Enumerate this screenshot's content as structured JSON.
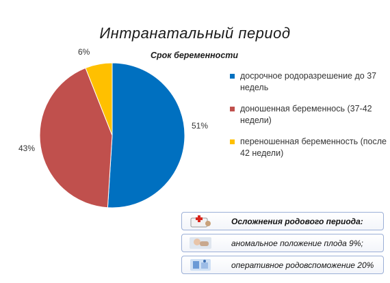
{
  "title": "Интранатальный период",
  "chart_data": {
    "type": "pie",
    "title": "Срок беременности",
    "slices": [
      {
        "label": "досрочное родоразрешение до 37 недель",
        "value": 51,
        "display": "51%",
        "color": "#0070C0"
      },
      {
        "label": "доношенная беременнось (37-42 недели)",
        "value": 43,
        "display": "43%",
        "color": "#C0504D"
      },
      {
        "label": "переношенная беременность (после 42 недели)",
        "value": 6,
        "display": "6%",
        "color": "#FFC000"
      }
    ],
    "legend_position": "right"
  },
  "info_boxes": {
    "header": "Осложнения родового периода:",
    "items": [
      "аномальное положение плода 9%;",
      "оперативное родовспоможение 20%"
    ],
    "icons": [
      "medical-kit-icon",
      "baby-icon",
      "medical-equipment-icon"
    ]
  }
}
